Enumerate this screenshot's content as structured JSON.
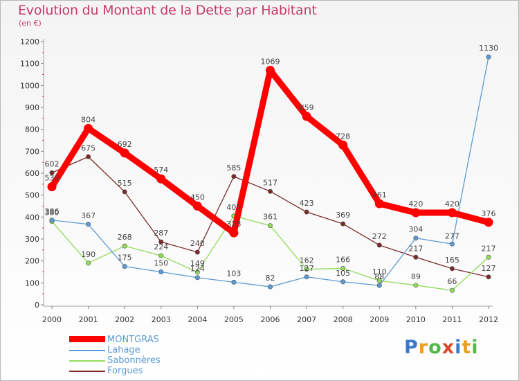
{
  "title": "Evolution du Montant de la Dette par Habitant",
  "subtitle": "(en €)",
  "logo": "Proxiti",
  "logo_colors": [
    "#3a79c8",
    "#e8a020",
    "#52b848",
    "#d84b2a",
    "#3a79c8",
    "#e8a020",
    "#52b848"
  ],
  "chart_data": {
    "type": "line",
    "x": [
      "2000",
      "2001",
      "2002",
      "2003",
      "2004",
      "2005",
      "2006",
      "2007",
      "2008",
      "2009",
      "2010",
      "2011",
      "2012"
    ],
    "ylim": [
      0,
      1200
    ],
    "yticks": [
      "0",
      "100",
      "200",
      "300",
      "400",
      "500",
      "600",
      "700",
      "800",
      "900",
      "1000",
      "1100",
      "1200"
    ],
    "grid": false,
    "legend_position": "bottom-left",
    "series": [
      {
        "name": "MONTGRAS",
        "color": "#ff0000",
        "values": [
          538,
          804,
          692,
          574,
          450,
          328,
          1069,
          859,
          728,
          461,
          420,
          420,
          376
        ],
        "labels": [
          "538",
          "804",
          "692",
          "574",
          "450",
          "328",
          "1069",
          "859",
          "728",
          "461",
          "420",
          "420",
          "376"
        ]
      },
      {
        "name": "Lahage",
        "color": "#5b9bd5",
        "values": [
          386,
          367,
          175,
          150,
          124,
          103,
          82,
          127,
          105,
          88,
          304,
          277,
          1130
        ],
        "labels": [
          "386",
          "367",
          "175",
          "150",
          "124",
          "103",
          "82",
          "127",
          "105",
          "88",
          "304",
          "277",
          "1130"
        ]
      },
      {
        "name": "Sabonnères",
        "color": "#8fdc5a",
        "values": [
          380,
          190,
          268,
          224,
          149,
          405,
          361,
          162,
          166,
          110,
          89,
          66,
          217
        ],
        "labels": [
          "380",
          "190",
          "268",
          "224",
          "149",
          "405",
          "361",
          "162",
          "166",
          "110",
          "89",
          "66",
          "217"
        ]
      },
      {
        "name": "Forgues",
        "color": "#7b2a2a",
        "values": [
          602,
          675,
          515,
          287,
          240,
          585,
          517,
          423,
          369,
          272,
          217,
          165,
          127
        ],
        "labels": [
          "602",
          "675",
          "515",
          "287",
          "240",
          "585",
          "517",
          "423",
          "369",
          "272",
          "217",
          "165",
          "127"
        ]
      }
    ]
  }
}
